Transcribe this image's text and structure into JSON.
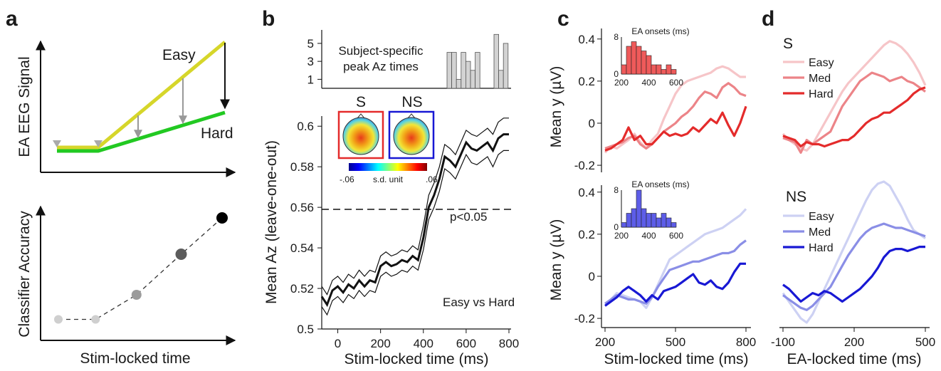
{
  "panels": {
    "a": "a",
    "b": "b",
    "c": "c",
    "d": "d"
  },
  "colors": {
    "easy_line": "#d6d62a",
    "hard_line": "#22c922",
    "S_easy": "#f6c5c8",
    "S_med": "#ec8488",
    "S_hard": "#e42b2b",
    "NS_easy": "#cdd1f3",
    "NS_med": "#8a8ee6",
    "NS_hard": "#1818d4",
    "hist_S": "#ef5a5a",
    "hist_NS": "#5d5de8",
    "hist_peak": "#d3d3d3"
  },
  "chart_data": [
    {
      "panel": "a-top",
      "type": "line",
      "ylabel": "EA EEG Signal",
      "series": [
        {
          "name": "Easy",
          "x": [
            0,
            1,
            4.4
          ],
          "y": [
            0.1,
            0.1,
            1.0
          ]
        },
        {
          "name": "Hard",
          "x": [
            0,
            1,
            4.4
          ],
          "y": [
            0.06,
            0.06,
            0.34
          ]
        }
      ],
      "arrows": [
        {
          "x": 2.05,
          "from": "Easy",
          "to": "Hard"
        },
        {
          "x": 3.2,
          "from": "Easy",
          "to": "Hard"
        },
        {
          "x": 4.4,
          "from": "Easy",
          "to": "Hard"
        }
      ],
      "markers_x": [
        0.1,
        1.0
      ]
    },
    {
      "panel": "a-bottom",
      "type": "scatter",
      "ylabel": "Classifier Accuracy",
      "xlabel": "Stim-locked time",
      "x": [
        0,
        1,
        2.1,
        3.3,
        4.4
      ],
      "y": [
        0.05,
        0.05,
        0.28,
        0.66,
        1.0
      ]
    },
    {
      "panel": "b-main",
      "type": "line",
      "xlabel": "Stim-locked time (ms)",
      "ylabel": "Mean Az (leave-one-out)",
      "xlim": [
        -75,
        810
      ],
      "ylim": [
        0.5,
        0.605
      ],
      "xticks": [
        0,
        200,
        400,
        600,
        800
      ],
      "yticks": [
        0.5,
        0.52,
        0.54,
        0.56,
        0.58,
        0.6
      ],
      "ytick_labels": [
        "0.5",
        "0.52",
        "0.54",
        "0.56",
        "0.58",
        "0.6"
      ],
      "threshold": {
        "y": 0.559,
        "label": "p<0.05"
      },
      "annotation": "Easy vs Hard",
      "x": [
        -75,
        -50,
        -25,
        0,
        25,
        50,
        75,
        100,
        125,
        150,
        175,
        200,
        225,
        250,
        275,
        300,
        325,
        350,
        375,
        400,
        425,
        450,
        475,
        500,
        525,
        550,
        575,
        600,
        625,
        650,
        675,
        700,
        725,
        750,
        775,
        800
      ],
      "mean": [
        0.516,
        0.512,
        0.519,
        0.521,
        0.518,
        0.522,
        0.52,
        0.524,
        0.521,
        0.524,
        0.523,
        0.531,
        0.533,
        0.531,
        0.532,
        0.534,
        0.533,
        0.536,
        0.534,
        0.545,
        0.56,
        0.566,
        0.574,
        0.585,
        0.583,
        0.58,
        0.586,
        0.592,
        0.589,
        0.588,
        0.59,
        0.592,
        0.588,
        0.594,
        0.596,
        0.596
      ],
      "upper": [
        0.521,
        0.517,
        0.524,
        0.526,
        0.523,
        0.527,
        0.525,
        0.529,
        0.526,
        0.529,
        0.528,
        0.536,
        0.538,
        0.536,
        0.537,
        0.539,
        0.538,
        0.541,
        0.539,
        0.551,
        0.566,
        0.572,
        0.58,
        0.591,
        0.589,
        0.586,
        0.592,
        0.598,
        0.596,
        0.595,
        0.597,
        0.599,
        0.596,
        0.602,
        0.604,
        0.604
      ],
      "lower": [
        0.511,
        0.507,
        0.514,
        0.516,
        0.513,
        0.517,
        0.515,
        0.519,
        0.516,
        0.519,
        0.518,
        0.526,
        0.528,
        0.526,
        0.527,
        0.529,
        0.528,
        0.531,
        0.529,
        0.539,
        0.554,
        0.56,
        0.568,
        0.579,
        0.577,
        0.574,
        0.58,
        0.586,
        0.582,
        0.581,
        0.583,
        0.585,
        0.58,
        0.586,
        0.588,
        0.588
      ],
      "topo": {
        "labels": [
          "S",
          "NS"
        ],
        "colorbar": {
          "min": "-.06",
          "max": ".06",
          "unit": "s.d. unit"
        }
      }
    },
    {
      "panel": "b-peak",
      "type": "bar",
      "annotation": [
        "Subject-specific",
        "peak Az times"
      ],
      "yticks": [
        1,
        3,
        5
      ],
      "ylim": [
        0,
        6.5
      ],
      "values": [
        4,
        4,
        1,
        4,
        3,
        2,
        4,
        0,
        0,
        0,
        6,
        2,
        5
      ]
    },
    {
      "panel": "c-top",
      "type": "line",
      "ylabel": "Mean y (µV)",
      "xlim": [
        200,
        800
      ],
      "ylim": [
        -0.22,
        0.45
      ],
      "yticks": [
        -0.2,
        0,
        0.2,
        0.4
      ],
      "ytick_labels": [
        "-0.2",
        "0",
        "0.2",
        "0.4"
      ],
      "x": [
        200,
        225,
        250,
        275,
        300,
        325,
        350,
        375,
        400,
        425,
        450,
        475,
        500,
        525,
        550,
        575,
        600,
        625,
        650,
        675,
        700,
        725,
        750,
        775,
        800
      ],
      "series": [
        {
          "name": "Easy",
          "values": [
            -0.14,
            -0.11,
            -0.12,
            -0.1,
            -0.08,
            -0.05,
            -0.09,
            -0.12,
            -0.08,
            -0.05,
            0.02,
            0.08,
            0.14,
            0.18,
            0.2,
            0.21,
            0.22,
            0.23,
            0.24,
            0.26,
            0.27,
            0.26,
            0.24,
            0.22,
            0.22
          ]
        },
        {
          "name": "Med",
          "values": [
            -0.12,
            -0.11,
            -0.1,
            -0.09,
            -0.07,
            -0.06,
            -0.1,
            -0.12,
            -0.1,
            -0.07,
            -0.04,
            -0.02,
            0.0,
            0.03,
            0.05,
            0.08,
            0.12,
            0.15,
            0.14,
            0.12,
            0.17,
            0.19,
            0.17,
            0.14,
            0.13
          ]
        },
        {
          "name": "Hard",
          "values": [
            -0.13,
            -0.12,
            -0.1,
            -0.08,
            -0.02,
            -0.08,
            -0.06,
            -0.1,
            -0.1,
            -0.07,
            -0.04,
            -0.06,
            -0.05,
            -0.06,
            -0.05,
            -0.02,
            -0.04,
            -0.01,
            0.02,
            0.0,
            0.05,
            -0.01,
            -0.06,
            0.0,
            0.08
          ]
        }
      ],
      "inset": {
        "type": "bar",
        "title": "EA onsets (ms)",
        "xlim": [
          200,
          600
        ],
        "xticks": [
          200,
          400,
          600
        ],
        "yticks": [
          0,
          8
        ],
        "values": [
          2,
          6,
          7,
          6,
          5,
          4,
          2,
          2,
          1,
          2,
          1
        ]
      }
    },
    {
      "panel": "c-bottom",
      "type": "line",
      "xlabel": "Stim-locked time (ms)",
      "ylabel": "Mean y (µV)",
      "xlim": [
        200,
        800
      ],
      "ylim": [
        -0.22,
        0.45
      ],
      "xticks": [
        200,
        500,
        800
      ],
      "yticks": [
        -0.2,
        0,
        0.2,
        0.4
      ],
      "ytick_labels": [
        "-0.2",
        "0",
        "0.2",
        "0.4"
      ],
      "x": [
        200,
        225,
        250,
        275,
        300,
        325,
        350,
        375,
        400,
        425,
        450,
        475,
        500,
        525,
        550,
        575,
        600,
        625,
        650,
        675,
        700,
        725,
        750,
        775,
        800
      ],
      "series": [
        {
          "name": "Easy",
          "values": [
            -0.13,
            -0.11,
            -0.08,
            -0.09,
            -0.1,
            -0.11,
            -0.12,
            -0.15,
            -0.1,
            -0.04,
            0.02,
            0.08,
            0.1,
            0.12,
            0.14,
            0.16,
            0.18,
            0.2,
            0.21,
            0.22,
            0.23,
            0.25,
            0.27,
            0.29,
            0.32
          ]
        },
        {
          "name": "Med",
          "values": [
            -0.13,
            -0.11,
            -0.09,
            -0.1,
            -0.11,
            -0.11,
            -0.12,
            -0.13,
            -0.1,
            -0.05,
            -0.01,
            0.03,
            0.04,
            0.05,
            0.06,
            0.07,
            0.07,
            0.08,
            0.09,
            0.1,
            0.11,
            0.11,
            0.12,
            0.15,
            0.17
          ]
        },
        {
          "name": "Hard",
          "values": [
            -0.14,
            -0.12,
            -0.1,
            -0.07,
            -0.05,
            -0.07,
            -0.09,
            -0.12,
            -0.09,
            -0.11,
            -0.07,
            -0.06,
            -0.05,
            -0.03,
            -0.01,
            0.01,
            -0.03,
            -0.04,
            -0.02,
            -0.05,
            -0.06,
            -0.03,
            0.02,
            0.06,
            0.06
          ]
        }
      ],
      "inset": {
        "type": "bar",
        "title": "EA onsets (ms)",
        "xlim": [
          200,
          600
        ],
        "xticks": [
          200,
          400,
          600
        ],
        "yticks": [
          0,
          8
        ],
        "values": [
          1,
          3,
          4,
          8,
          4,
          3,
          3,
          2,
          3,
          2,
          1
        ]
      }
    },
    {
      "panel": "d-top",
      "type": "line",
      "title": "S",
      "xlim": [
        -100,
        500
      ],
      "ylim": [
        -0.22,
        0.45
      ],
      "x": [
        -100,
        -75,
        -50,
        -25,
        0,
        25,
        50,
        75,
        100,
        125,
        150,
        175,
        200,
        225,
        250,
        275,
        300,
        325,
        350,
        375,
        400,
        425,
        450,
        475,
        500
      ],
      "series": [
        {
          "name": "Easy",
          "values": [
            -0.05,
            -0.08,
            -0.1,
            -0.12,
            -0.13,
            -0.1,
            -0.05,
            0.0,
            0.05,
            0.1,
            0.15,
            0.19,
            0.22,
            0.25,
            0.28,
            0.31,
            0.34,
            0.37,
            0.39,
            0.38,
            0.36,
            0.33,
            0.29,
            0.24,
            0.18
          ]
        },
        {
          "name": "Med",
          "values": [
            -0.07,
            -0.08,
            -0.09,
            -0.14,
            -0.08,
            -0.1,
            -0.08,
            -0.06,
            -0.04,
            0.02,
            0.08,
            0.12,
            0.16,
            0.2,
            0.22,
            0.24,
            0.23,
            0.22,
            0.2,
            0.21,
            0.22,
            0.2,
            0.19,
            0.17,
            0.15
          ]
        },
        {
          "name": "Hard",
          "values": [
            -0.06,
            -0.07,
            -0.08,
            -0.11,
            -0.09,
            -0.1,
            -0.1,
            -0.11,
            -0.1,
            -0.09,
            -0.08,
            -0.08,
            -0.06,
            -0.03,
            0.0,
            0.02,
            0.03,
            0.05,
            0.05,
            0.07,
            0.09,
            0.11,
            0.14,
            0.16,
            0.17
          ]
        }
      ]
    },
    {
      "panel": "d-bottom",
      "type": "line",
      "title": "NS",
      "xlabel": "EA-locked time (ms)",
      "xlim": [
        -100,
        500
      ],
      "ylim": [
        -0.22,
        0.45
      ],
      "xticks": [
        -100,
        200,
        500
      ],
      "x": [
        -100,
        -75,
        -50,
        -25,
        0,
        25,
        50,
        75,
        100,
        125,
        150,
        175,
        200,
        225,
        250,
        275,
        300,
        325,
        350,
        375,
        400,
        425,
        450,
        475,
        500
      ],
      "series": [
        {
          "name": "Easy",
          "values": [
            -0.08,
            -0.12,
            -0.16,
            -0.2,
            -0.22,
            -0.18,
            -0.12,
            -0.06,
            0.0,
            0.06,
            0.12,
            0.18,
            0.24,
            0.3,
            0.36,
            0.41,
            0.44,
            0.45,
            0.43,
            0.38,
            0.33,
            0.27,
            0.22,
            0.2,
            0.18
          ]
        },
        {
          "name": "Med",
          "values": [
            -0.09,
            -0.11,
            -0.13,
            -0.15,
            -0.16,
            -0.14,
            -0.11,
            -0.08,
            -0.05,
            0.0,
            0.05,
            0.1,
            0.14,
            0.18,
            0.21,
            0.23,
            0.24,
            0.25,
            0.24,
            0.23,
            0.23,
            0.22,
            0.21,
            0.2,
            0.19
          ]
        },
        {
          "name": "Hard",
          "values": [
            -0.04,
            -0.06,
            -0.09,
            -0.12,
            -0.1,
            -0.08,
            -0.09,
            -0.07,
            -0.08,
            -0.1,
            -0.12,
            -0.1,
            -0.08,
            -0.06,
            -0.03,
            0.0,
            0.04,
            0.09,
            0.12,
            0.13,
            0.13,
            0.12,
            0.13,
            0.14,
            0.14
          ]
        }
      ]
    }
  ]
}
